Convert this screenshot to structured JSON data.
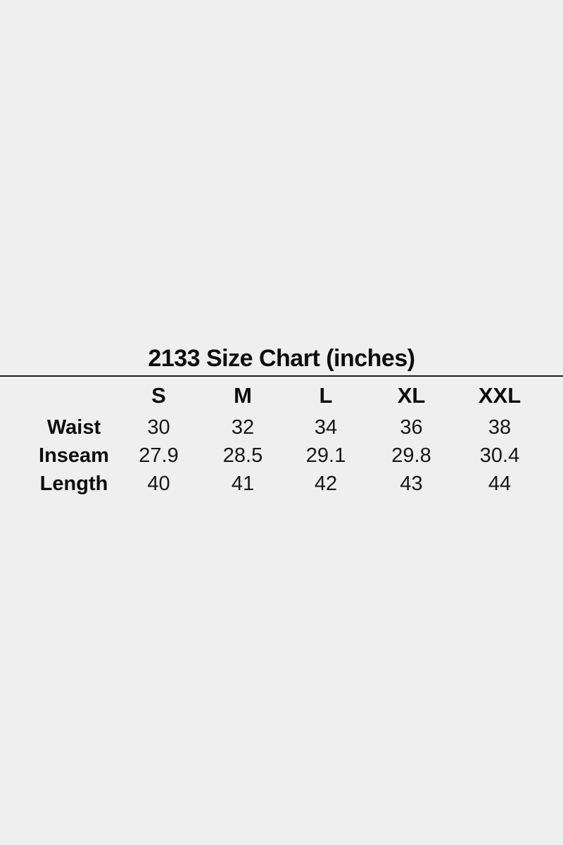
{
  "theme": {
    "background_color": "#efefef",
    "text_color": "#111111",
    "rule_color": "#1c1c1c"
  },
  "chart_data": {
    "type": "table",
    "title": "2133 Size Chart (inches)",
    "units": "inches",
    "columns": [
      "S",
      "M",
      "L",
      "XL",
      "XXL"
    ],
    "rows": [
      {
        "label": "Waist",
        "values": [
          "30",
          "32",
          "34",
          "36",
          "38"
        ]
      },
      {
        "label": "Inseam",
        "values": [
          "27.9",
          "28.5",
          "29.1",
          "29.8",
          "30.4"
        ]
      },
      {
        "label": "Length",
        "values": [
          "40",
          "41",
          "42",
          "43",
          "44"
        ]
      }
    ]
  }
}
